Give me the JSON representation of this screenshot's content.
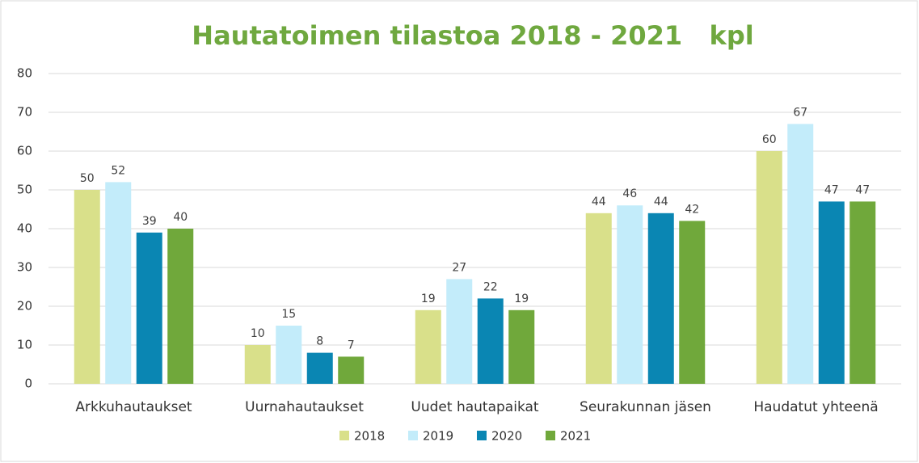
{
  "chart_data": {
    "type": "bar",
    "title": "Hautatoimen tilastoa 2018 - 2021   kpl",
    "categories": [
      "Arkkuhautaukset",
      "Uurnahautaukset",
      "Uudet hautapaikat",
      "Seurakunnan jäsen",
      "Haudatut yhteenä"
    ],
    "series": [
      {
        "name": "2018",
        "color": "#d9e08a",
        "values": [
          50,
          10,
          19,
          44,
          60
        ]
      },
      {
        "name": "2019",
        "color": "#c3ecfa",
        "values": [
          52,
          15,
          27,
          46,
          67
        ]
      },
      {
        "name": "2020",
        "color": "#0a86b3",
        "values": [
          39,
          8,
          22,
          44,
          47
        ]
      },
      {
        "name": "2021",
        "color": "#70a83b",
        "values": [
          40,
          7,
          19,
          42,
          47
        ]
      }
    ],
    "ylim": [
      0,
      80
    ],
    "yticks": [
      0,
      10,
      20,
      30,
      40,
      50,
      60,
      70,
      80
    ],
    "grid": true,
    "legend": "bottom"
  }
}
